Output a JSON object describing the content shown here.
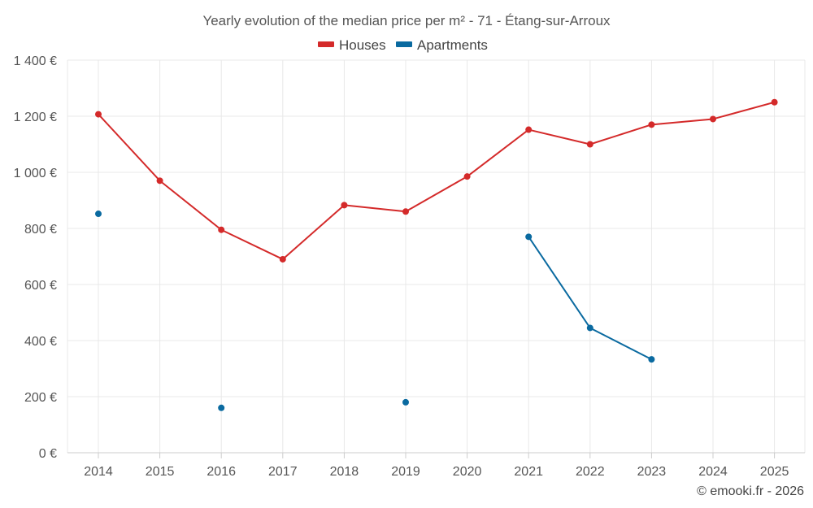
{
  "chart_data": {
    "type": "line",
    "title": "Yearly evolution of the median price per m² - 71 - Étang-sur-Arroux",
    "categories": [
      "2014",
      "2015",
      "2016",
      "2017",
      "2018",
      "2019",
      "2020",
      "2021",
      "2022",
      "2023",
      "2024",
      "2025"
    ],
    "ylim": [
      0,
      1400
    ],
    "yticks": [
      0,
      200,
      400,
      600,
      800,
      1000,
      1200,
      1400
    ],
    "ytick_labels": [
      "0 €",
      "200 €",
      "400 €",
      "600 €",
      "800 €",
      "1 000 €",
      "1 200 €",
      "1 400 €"
    ],
    "grid": true,
    "legend_position": "top-center",
    "series": [
      {
        "name": "Houses",
        "color": "#d42a2a",
        "values": [
          1207,
          970,
          795,
          690,
          883,
          860,
          985,
          1152,
          1100,
          1170,
          1190,
          1250
        ]
      },
      {
        "name": "Apartments",
        "color": "#0a6aa0",
        "values": [
          852,
          null,
          160,
          null,
          null,
          180,
          null,
          770,
          445,
          333,
          null,
          null
        ]
      }
    ]
  },
  "credit": "© emooki.fr - 2026"
}
